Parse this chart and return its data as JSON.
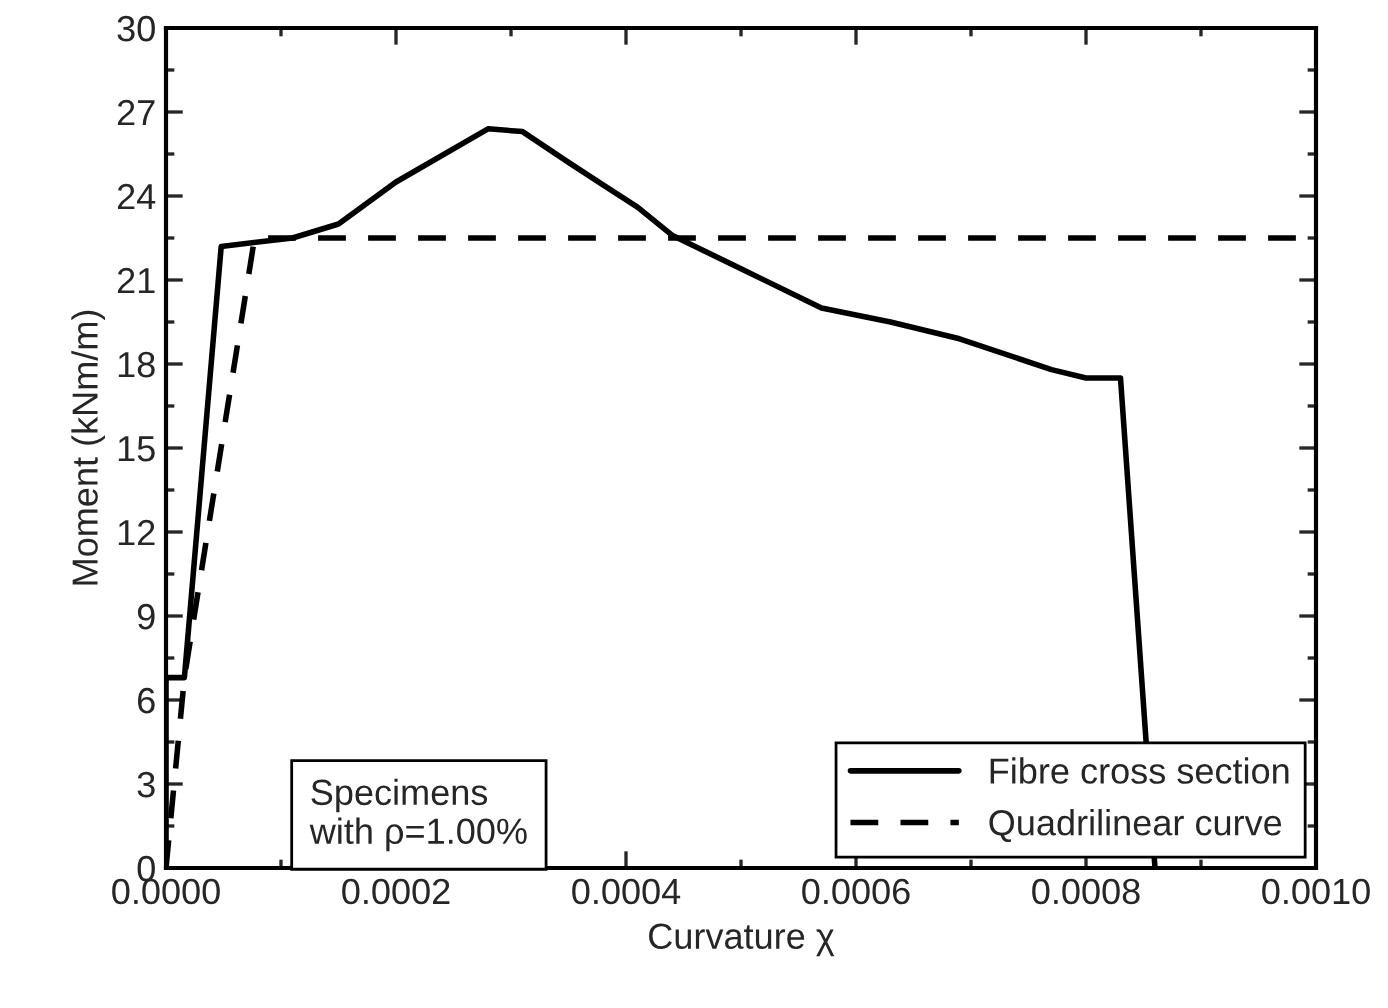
{
  "chart_data": {
    "type": "line",
    "xlabel": "Curvature χ",
    "ylabel": "Moment (kNm/m)",
    "xlim": [
      0,
      0.001
    ],
    "ylim": [
      0,
      30
    ],
    "xticks": [
      {
        "value": 0,
        "label": "0.0000"
      },
      {
        "value": 0.0002,
        "label": "0.0002"
      },
      {
        "value": 0.0004,
        "label": "0.0004"
      },
      {
        "value": 0.0006,
        "label": "0.0006"
      },
      {
        "value": 0.0008,
        "label": "0.0008"
      },
      {
        "value": 0.001,
        "label": "0.0010"
      }
    ],
    "yticks": [
      0,
      3,
      6,
      9,
      12,
      15,
      18,
      21,
      24,
      27,
      30
    ],
    "series": [
      {
        "name": "Fibre cross section",
        "color": "#000000",
        "line_style": "solid",
        "x": [
          0,
          0,
          1.6e-05,
          4.8e-05,
          0.00011,
          0.00015,
          0.0002,
          0.00028,
          0.00031,
          0.00035,
          0.00038,
          0.00041,
          0.00044,
          0.0005,
          0.00057,
          0.00063,
          0.00069,
          0.00077,
          0.0008,
          0.00083,
          0.00086
        ],
        "values": [
          0,
          6.8,
          6.8,
          22.2,
          22.5,
          23.0,
          24.5,
          26.4,
          26.3,
          25.2,
          24.4,
          23.6,
          22.6,
          21.4,
          20.0,
          19.5,
          18.9,
          17.8,
          17.5,
          17.5,
          0
        ]
      },
      {
        "name": "Quadrilinear curve",
        "color": "#000000",
        "line_style": "dashed",
        "x": [
          0,
          1.6e-05,
          7.7e-05,
          0.001
        ],
        "values": [
          0,
          6.8,
          22.5,
          22.5
        ]
      }
    ],
    "annotations": [
      "Specimens\nwith ρ=1.00%"
    ],
    "legend": "bottom right",
    "grid": false
  }
}
